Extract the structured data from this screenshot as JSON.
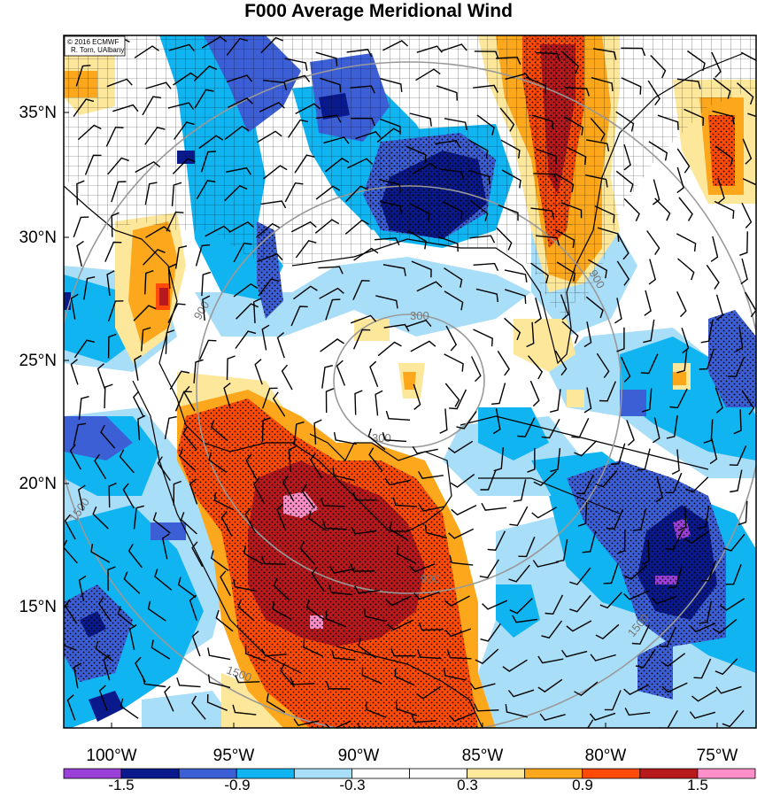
{
  "title": "F000 Average Meridional Wind",
  "credit": {
    "line1": "© 2016 ECMWF",
    "line2": "R. Torn, UAlbany"
  },
  "map": {
    "lat_labels": [
      "35°N",
      "30°N",
      "25°N",
      "20°N",
      "15°N"
    ],
    "lon_labels": [
      "100°W",
      "95°W",
      "90°W",
      "85°W",
      "80°W",
      "75°W"
    ],
    "contour_labels": [
      "300",
      "300",
      "900",
      "900",
      "900",
      "1500",
      "1500",
      "1500"
    ]
  },
  "colorbar": {
    "labels": [
      "-1.5",
      "-0.9",
      "-0.3",
      "0.3",
      "0.9",
      "1.5"
    ],
    "colors": [
      "#9a3fd8",
      "#0a1a8c",
      "#3d5fd6",
      "#10b4f0",
      "#a9def8",
      "#ffffff",
      "#ffffff",
      "#fde79a",
      "#fca71c",
      "#ff4a08",
      "#b8191c",
      "#ff8ec9"
    ]
  }
}
